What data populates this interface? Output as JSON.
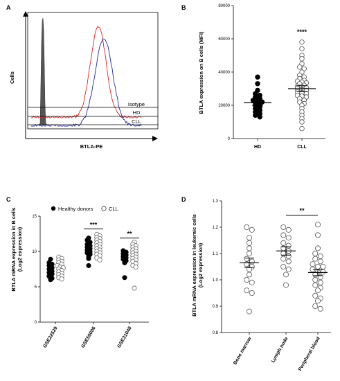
{
  "chart_data": [
    {
      "panel": "A",
      "type": "area",
      "ylabel": "Cells",
      "xlabel": "BTLA-PE",
      "legend": [
        "Isotype",
        "HD",
        "CLL"
      ],
      "series_colors": {
        "Isotype": "#555555",
        "HD": "#d62728",
        "CLL": "#1f2a9e"
      }
    },
    {
      "panel": "B",
      "type": "scatter",
      "ylabel": "BTLA expression on B cells (MFI)",
      "categories": [
        "HD",
        "CLL"
      ],
      "ylim": [
        0,
        80000
      ],
      "yticks": [
        "0",
        "20000",
        "40000",
        "60000",
        "80000"
      ],
      "significance": "****",
      "series": [
        {
          "name": "HD",
          "filled": true,
          "mean": 21500,
          "sem": 1500,
          "values": [
            37000,
            33000,
            29000,
            27000,
            26000,
            25000,
            24000,
            23000,
            22500,
            22000,
            21500,
            21000,
            20000,
            19000,
            18000,
            17000,
            16000,
            15000,
            14000,
            13000
          ]
        },
        {
          "name": "CLL",
          "filled": false,
          "mean": 30000,
          "sem": 1800,
          "values": [
            58000,
            54000,
            50000,
            48000,
            45000,
            43000,
            42000,
            40000,
            38000,
            37000,
            36000,
            35000,
            34500,
            34000,
            33500,
            33000,
            32000,
            31500,
            31000,
            30500,
            30000,
            29500,
            29000,
            28000,
            27500,
            27000,
            26000,
            25500,
            25000,
            24000,
            23000,
            22000,
            21000,
            20000,
            18000,
            16000,
            14000,
            12000,
            10000,
            6000
          ]
        }
      ]
    },
    {
      "panel": "C",
      "type": "scatter",
      "ylabel": "BTLA mRNA expression in B cells (Log2 expression)",
      "categories": [
        "GSE22529",
        "GSE50006",
        "GSE31048"
      ],
      "ylim": [
        0,
        15
      ],
      "yticks": [
        "0",
        "5",
        "10",
        "15"
      ],
      "legend": [
        "Healthy donors",
        "CLL"
      ],
      "significance": [
        {
          "between": "GSE50006",
          "label": "***"
        },
        {
          "between": "GSE31048",
          "label": "**"
        }
      ],
      "series": [
        {
          "name": "Healthy donors",
          "filled": true,
          "groups": [
            [
              8.9,
              8.4,
              8.2,
              8.0,
              7.7,
              7.5,
              7.2,
              7.0,
              6.8,
              6.5,
              6.2,
              6.0
            ],
            [
              11.9,
              11.6,
              11.3,
              11.0,
              10.8,
              10.6,
              10.4,
              10.2,
              10.0,
              9.8,
              9.6,
              9.3,
              9.0,
              8.0
            ],
            [
              10.1,
              9.9,
              9.7,
              9.5,
              9.3,
              9.1,
              8.9,
              8.7,
              8.4,
              6.3
            ]
          ]
        },
        {
          "name": "CLL",
          "filled": false,
          "groups": [
            [
              9.2,
              9.0,
              8.8,
              8.6,
              8.4,
              8.2,
              8.0,
              7.8,
              7.7,
              7.5,
              7.3,
              7.1,
              6.9,
              6.7,
              6.5,
              6.3,
              6.1
            ],
            [
              12.4,
              12.2,
              12.0,
              11.8,
              11.6,
              11.4,
              11.2,
              11.0,
              10.8,
              10.6,
              10.4,
              10.2,
              10.0,
              9.8,
              9.6,
              9.4,
              9.1,
              8.8
            ],
            [
              11.3,
              11.0,
              10.8,
              10.6,
              10.4,
              10.2,
              10.0,
              9.8,
              9.6,
              9.4,
              9.2,
              9.0,
              8.8,
              8.6,
              8.3,
              8.0,
              7.8,
              4.8
            ]
          ]
        }
      ]
    },
    {
      "panel": "D",
      "type": "scatter",
      "ylabel": "BTLA mRNA expression in leukemic cells (Log2 expression)",
      "categories": [
        "Bone marrow",
        "Lymph node",
        "Peripheral blood"
      ],
      "ylim": [
        0.8,
        1.3
      ],
      "yticks": [
        "0.8",
        "0.9",
        "1.0",
        "1.1",
        "1.2",
        "1.3"
      ],
      "significance": [
        {
          "between": "Lymph node-Peripheral blood",
          "label": "**"
        }
      ],
      "series": [
        {
          "name": "Bone marrow",
          "filled": false,
          "mean": 1.065,
          "sem": 0.018,
          "values": [
            1.2,
            1.19,
            1.16,
            1.14,
            1.12,
            1.1,
            1.08,
            1.07,
            1.06,
            1.05,
            1.04,
            1.02,
            1.0,
            0.99,
            0.96,
            0.95,
            0.88
          ]
        },
        {
          "name": "Lymph node",
          "filled": false,
          "mean": 1.11,
          "sem": 0.016,
          "values": [
            1.2,
            1.19,
            1.17,
            1.16,
            1.14,
            1.13,
            1.12,
            1.11,
            1.1,
            1.09,
            1.08,
            1.07,
            1.05,
            1.04,
            1.02,
            0.98
          ]
        },
        {
          "name": "Peripheral blood",
          "filled": false,
          "mean": 1.028,
          "sem": 0.012,
          "values": [
            1.21,
            1.17,
            1.12,
            1.1,
            1.09,
            1.08,
            1.07,
            1.06,
            1.05,
            1.05,
            1.04,
            1.03,
            1.03,
            1.02,
            1.01,
            1.0,
            0.99,
            0.98,
            0.97,
            0.96,
            0.94,
            0.93,
            0.92,
            0.9,
            0.89
          ]
        }
      ]
    }
  ],
  "panels": {
    "a": "A",
    "b": "B",
    "c": "C",
    "d": "D"
  }
}
